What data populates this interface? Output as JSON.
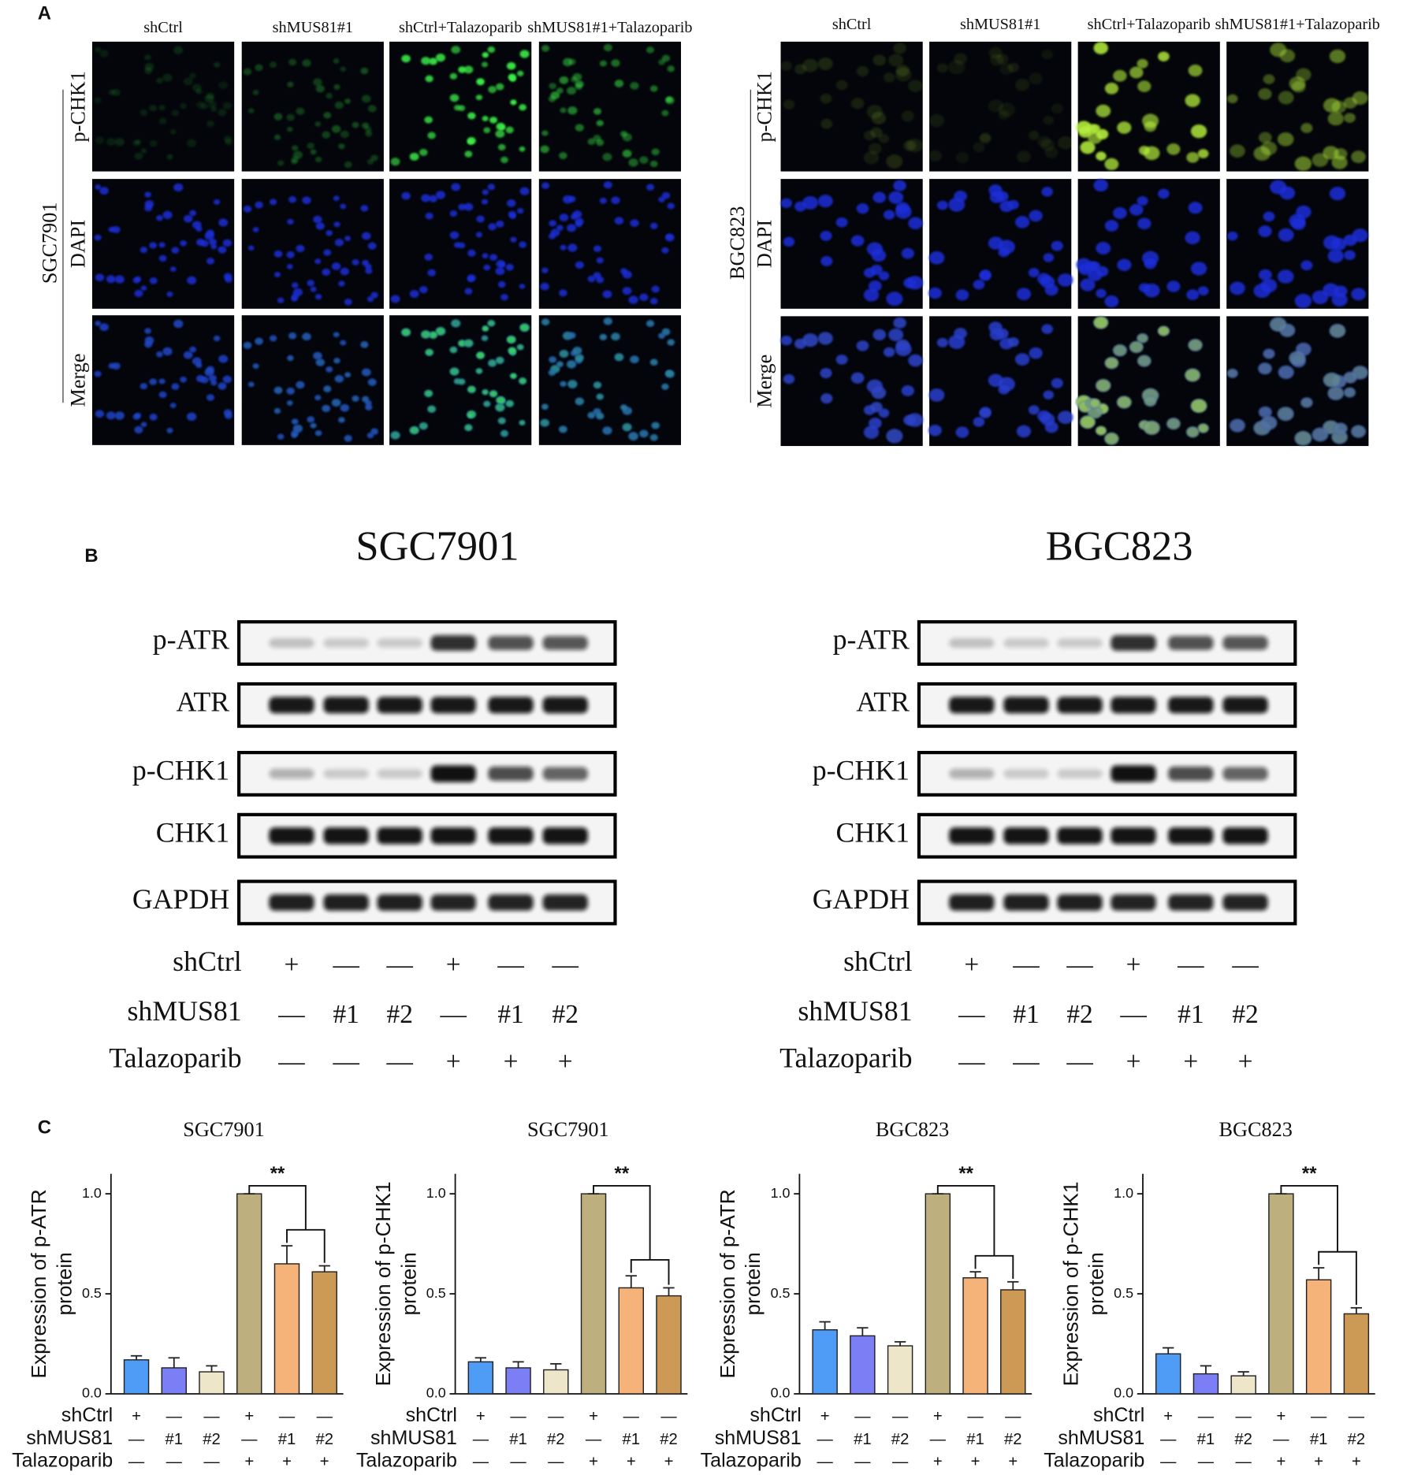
{
  "panel_a": {
    "label": "A",
    "groups": [
      {
        "cell_line": "SGC7901",
        "columns": [
          "shCtrl",
          "shMUS81#1",
          "shCtrl+Talazoparib",
          "shMUS81#1+Talazoparib"
        ],
        "rows": [
          "p-CHK1",
          "DAPI",
          "Merge"
        ]
      },
      {
        "cell_line": "BGC823",
        "columns": [
          "shCtrl",
          "shMUS81#1",
          "shCtrl+Talazoparib",
          "shMUS81#1+Talazoparib"
        ],
        "rows": [
          "p-CHK1",
          "DAPI",
          "Merge"
        ]
      }
    ]
  },
  "panel_b": {
    "label": "B",
    "blots": [
      {
        "cell_line": "SGC7901",
        "proteins": [
          "p-ATR",
          "ATR",
          "p-CHK1",
          "CHK1",
          "GAPDH"
        ],
        "conditions": [
          {
            "name": "shCtrl",
            "lanes": [
              "+",
              "—",
              "—",
              "+",
              "—",
              "—"
            ]
          },
          {
            "name": "shMUS81",
            "lanes": [
              "—",
              "#1",
              "#2",
              "—",
              "#1",
              "#2"
            ]
          },
          {
            "name": "Talazoparib",
            "lanes": [
              "—",
              "—",
              "—",
              "+",
              "+",
              "+"
            ]
          }
        ]
      },
      {
        "cell_line": "BGC823",
        "proteins": [
          "p-ATR",
          "ATR",
          "p-CHK1",
          "CHK1",
          "GAPDH"
        ],
        "conditions": [
          {
            "name": "shCtrl",
            "lanes": [
              "+",
              "—",
              "—",
              "+",
              "—",
              "—"
            ]
          },
          {
            "name": "shMUS81",
            "lanes": [
              "—",
              "#1",
              "#2",
              "—",
              "#1",
              "#2"
            ]
          },
          {
            "name": "Talazoparib",
            "lanes": [
              "—",
              "—",
              "—",
              "+",
              "+",
              "+"
            ]
          }
        ]
      }
    ]
  },
  "panel_c": {
    "label": "C"
  },
  "chart_data": [
    {
      "type": "bar",
      "title": "SGC7901",
      "y_label": [
        "Expression of p-ATR",
        "protein"
      ],
      "categories": [
        null,
        null,
        null,
        null,
        null,
        null
      ],
      "values": [
        0.17,
        0.13,
        0.11,
        1.0,
        0.65,
        0.61
      ],
      "errors": [
        0.02,
        0.05,
        0.03,
        0,
        0.09,
        0.03
      ],
      "colors": [
        "#4f9cf6",
        "#7b7ef4",
        "#ede6c8",
        "#bdb07e",
        "#f5b37a",
        "#cc9a55"
      ],
      "ylim": [
        0,
        1.1
      ],
      "yticks": [
        {
          "value": 0,
          "label": "0.0"
        },
        {
          "value": 0.5,
          "label": "0.5"
        },
        {
          "value": 1,
          "label": "1.0"
        }
      ],
      "annotation": "**",
      "conditions": [
        {
          "name": "shCtrl",
          "lanes": [
            "+",
            "—",
            "—",
            "+",
            "—",
            "—"
          ]
        },
        {
          "name": "shMUS81",
          "lanes": [
            "—",
            "#1",
            "#2",
            "—",
            "#1",
            "#2"
          ]
        },
        {
          "name": "Talazoparib",
          "lanes": [
            "—",
            "—",
            "—",
            "+",
            "+",
            "+"
          ]
        }
      ]
    },
    {
      "type": "bar",
      "title": "SGC7901",
      "y_label": [
        "Expression of p-CHK1",
        "protein"
      ],
      "categories": [
        null,
        null,
        null,
        null,
        null,
        null
      ],
      "values": [
        0.16,
        0.13,
        0.12,
        1.0,
        0.53,
        0.49
      ],
      "errors": [
        0.02,
        0.03,
        0.03,
        0,
        0.06,
        0.04
      ],
      "colors": [
        "#4f9cf6",
        "#7b7ef4",
        "#ede6c8",
        "#bdb07e",
        "#f5b37a",
        "#cc9a55"
      ],
      "ylim": [
        0,
        1.1
      ],
      "yticks": [
        {
          "value": 0,
          "label": "0.0"
        },
        {
          "value": 0.5,
          "label": "0.5"
        },
        {
          "value": 1,
          "label": "1.0"
        }
      ],
      "annotation": "**",
      "conditions": [
        {
          "name": "shCtrl",
          "lanes": [
            "+",
            "—",
            "—",
            "+",
            "—",
            "—"
          ]
        },
        {
          "name": "shMUS81",
          "lanes": [
            "—",
            "#1",
            "#2",
            "—",
            "#1",
            "#2"
          ]
        },
        {
          "name": "Talazoparib",
          "lanes": [
            "—",
            "—",
            "—",
            "+",
            "+",
            "+"
          ]
        }
      ]
    },
    {
      "type": "bar",
      "title": "BGC823",
      "y_label": [
        "Expression of p-ATR",
        "protein"
      ],
      "categories": [
        null,
        null,
        null,
        null,
        null,
        null
      ],
      "values": [
        0.32,
        0.29,
        0.24,
        1.0,
        0.58,
        0.52
      ],
      "errors": [
        0.04,
        0.04,
        0.02,
        0,
        0.03,
        0.04
      ],
      "colors": [
        "#4f9cf6",
        "#7b7ef4",
        "#ede6c8",
        "#bdb07e",
        "#f5b37a",
        "#cc9a55"
      ],
      "ylim": [
        0,
        1.1
      ],
      "yticks": [
        {
          "value": 0,
          "label": "0.0"
        },
        {
          "value": 0.5,
          "label": "0.5"
        },
        {
          "value": 1,
          "label": "1.0"
        }
      ],
      "annotation": "**",
      "conditions": [
        {
          "name": "shCtrl",
          "lanes": [
            "+",
            "—",
            "—",
            "+",
            "—",
            "—"
          ]
        },
        {
          "name": "shMUS81",
          "lanes": [
            "—",
            "#1",
            "#2",
            "—",
            "#1",
            "#2"
          ]
        },
        {
          "name": "Talazoparib",
          "lanes": [
            "—",
            "—",
            "—",
            "+",
            "+",
            "+"
          ]
        }
      ]
    },
    {
      "type": "bar",
      "title": "BGC823",
      "y_label": [
        "Expression of p-CHK1",
        "protein"
      ],
      "categories": [
        null,
        null,
        null,
        null,
        null,
        null
      ],
      "values": [
        0.2,
        0.1,
        0.09,
        1.0,
        0.57,
        0.4
      ],
      "errors": [
        0.03,
        0.04,
        0.02,
        0,
        0.06,
        0.03
      ],
      "colors": [
        "#4f9cf6",
        "#7b7ef4",
        "#ede6c8",
        "#bdb07e",
        "#f5b37a",
        "#cc9a55"
      ],
      "ylim": [
        0,
        1.1
      ],
      "yticks": [
        {
          "value": 0,
          "label": "0.0"
        },
        {
          "value": 0.5,
          "label": "0.5"
        },
        {
          "value": 1,
          "label": "1.0"
        }
      ],
      "annotation": "**",
      "conditions": [
        {
          "name": "shCtrl",
          "lanes": [
            "+",
            "—",
            "—",
            "+",
            "—",
            "—"
          ]
        },
        {
          "name": "shMUS81",
          "lanes": [
            "—",
            "#1",
            "#2",
            "—",
            "#1",
            "#2"
          ]
        },
        {
          "name": "Talazoparib",
          "lanes": [
            "—",
            "—",
            "—",
            "+",
            "+",
            "+"
          ]
        }
      ]
    }
  ]
}
